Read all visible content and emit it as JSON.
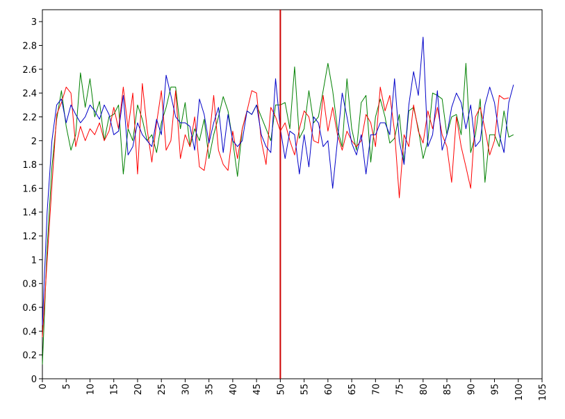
{
  "chart_data": {
    "type": "line",
    "title": "",
    "xlabel": "",
    "ylabel": "",
    "xlim": [
      0,
      105
    ],
    "ylim": [
      0,
      3.1
    ],
    "xticks": [
      0,
      5,
      10,
      15,
      20,
      25,
      30,
      35,
      40,
      45,
      50,
      55,
      60,
      65,
      70,
      75,
      80,
      85,
      90,
      95,
      100,
      105
    ],
    "yticks": [
      0,
      0.2,
      0.4,
      0.6,
      0.8,
      1,
      1.2,
      1.4,
      1.6,
      1.8,
      2,
      2.2,
      2.4,
      2.6,
      2.8,
      3
    ],
    "xtick_labels": [
      "0",
      "5",
      "10",
      "15",
      "20",
      "25",
      "30",
      "35",
      "40",
      "45",
      "50",
      "55",
      "60",
      "65",
      "70",
      "75",
      "80",
      "85",
      "90",
      "95",
      "100",
      "105"
    ],
    "ytick_labels": [
      "0",
      "0.2",
      "0.4",
      "0.6",
      "0.8",
      "1",
      "1.2",
      "1.4",
      "1.6",
      "1.8",
      "2",
      "2.2",
      "2.4",
      "2.6",
      "2.8",
      "3"
    ],
    "grid": false,
    "x_tick_label_rotation": "vertical",
    "vline": {
      "x": 50,
      "color": "#cc0000"
    },
    "series": [
      {
        "color": "#008000",
        "values": [
          0.12,
          1.1,
          1.78,
          2.18,
          2.42,
          2.12,
          1.92,
          2.05,
          2.57,
          2.28,
          2.52,
          2.2,
          2.33,
          2.0,
          2.2,
          2.22,
          2.3,
          1.72,
          2.1,
          2.0,
          2.3,
          2.18,
          2.0,
          2.05,
          1.9,
          2.15,
          2.28,
          2.45,
          2.45,
          2.1,
          2.32,
          1.95,
          2.1,
          2.0,
          2.18,
          1.85,
          2.05,
          2.2,
          2.37,
          2.25,
          2.0,
          1.7,
          2.1,
          2.25,
          2.22,
          2.3,
          2.2,
          2.1,
          2.0,
          2.3,
          2.3,
          2.32,
          2.1,
          2.62,
          2.02,
          2.1,
          2.42,
          2.15,
          2.2,
          2.42,
          2.65,
          2.42,
          2.1,
          1.95,
          2.52,
          2.1,
          1.92,
          2.32,
          2.38,
          1.82,
          2.2,
          2.35,
          2.2,
          1.98,
          2.02,
          2.22,
          1.82,
          2.25,
          2.28,
          2.1,
          1.85,
          2.0,
          2.4,
          2.38,
          2.35,
          2.05,
          2.2,
          2.22,
          2.05,
          2.65,
          1.9,
          2.05,
          2.35,
          1.65,
          2.05,
          2.05,
          1.95,
          2.25,
          2.03,
          2.05
        ]
      },
      {
        "color": "#ff0000",
        "values": [
          0.35,
          1.0,
          1.62,
          2.22,
          2.32,
          2.45,
          2.4,
          1.95,
          2.12,
          2.0,
          2.1,
          2.05,
          2.15,
          2.0,
          2.08,
          2.28,
          2.1,
          2.45,
          2.1,
          2.4,
          1.72,
          2.48,
          2.1,
          1.82,
          2.15,
          2.42,
          1.92,
          2.0,
          2.42,
          1.85,
          2.05,
          1.95,
          2.2,
          1.78,
          1.75,
          2.0,
          2.38,
          1.92,
          1.8,
          1.75,
          2.08,
          1.85,
          2.1,
          2.25,
          2.42,
          2.4,
          2.0,
          1.8,
          2.28,
          2.2,
          2.08,
          2.15,
          2.0,
          1.88,
          2.1,
          2.25,
          2.2,
          2.0,
          1.98,
          2.38,
          2.08,
          2.28,
          2.05,
          1.92,
          2.08,
          2.0,
          1.95,
          2.0,
          2.22,
          2.15,
          1.95,
          2.45,
          2.25,
          2.38,
          2.08,
          1.52,
          2.05,
          1.95,
          2.3,
          2.08,
          1.98,
          2.25,
          2.1,
          2.28,
          2.05,
          1.95,
          1.65,
          2.2,
          1.95,
          1.78,
          1.6,
          2.2,
          2.28,
          2.1,
          1.88,
          2.0,
          2.38,
          2.35,
          2.36
        ]
      },
      {
        "color": "#0000c8",
        "values": [
          0.45,
          1.4,
          2.0,
          2.3,
          2.35,
          2.15,
          2.3,
          2.22,
          2.15,
          2.2,
          2.3,
          2.25,
          2.18,
          2.3,
          2.22,
          2.05,
          2.08,
          2.38,
          1.88,
          1.95,
          2.15,
          2.05,
          2.0,
          1.95,
          2.18,
          2.05,
          2.55,
          2.38,
          2.2,
          2.15,
          2.15,
          2.12,
          1.92,
          2.35,
          2.22,
          1.98,
          2.15,
          2.28,
          1.9,
          2.22,
          2.0,
          1.95,
          2.0,
          2.25,
          2.22,
          2.3,
          2.05,
          1.95,
          1.9,
          2.52,
          2.1,
          1.85,
          2.08,
          2.05,
          1.72,
          2.05,
          1.78,
          2.2,
          2.15,
          1.95,
          2.0,
          1.6,
          2.0,
          2.4,
          2.2,
          1.98,
          1.88,
          2.05,
          1.72,
          2.05,
          2.05,
          2.15,
          2.15,
          2.05,
          2.52,
          2.0,
          1.8,
          2.3,
          2.58,
          2.38,
          2.87,
          1.95,
          2.05,
          2.42,
          1.92,
          2.05,
          2.28,
          2.4,
          2.32,
          2.1,
          2.3,
          1.95,
          2.0,
          2.3,
          2.45,
          2.32,
          2.05,
          1.9,
          2.32,
          2.47
        ]
      }
    ]
  }
}
